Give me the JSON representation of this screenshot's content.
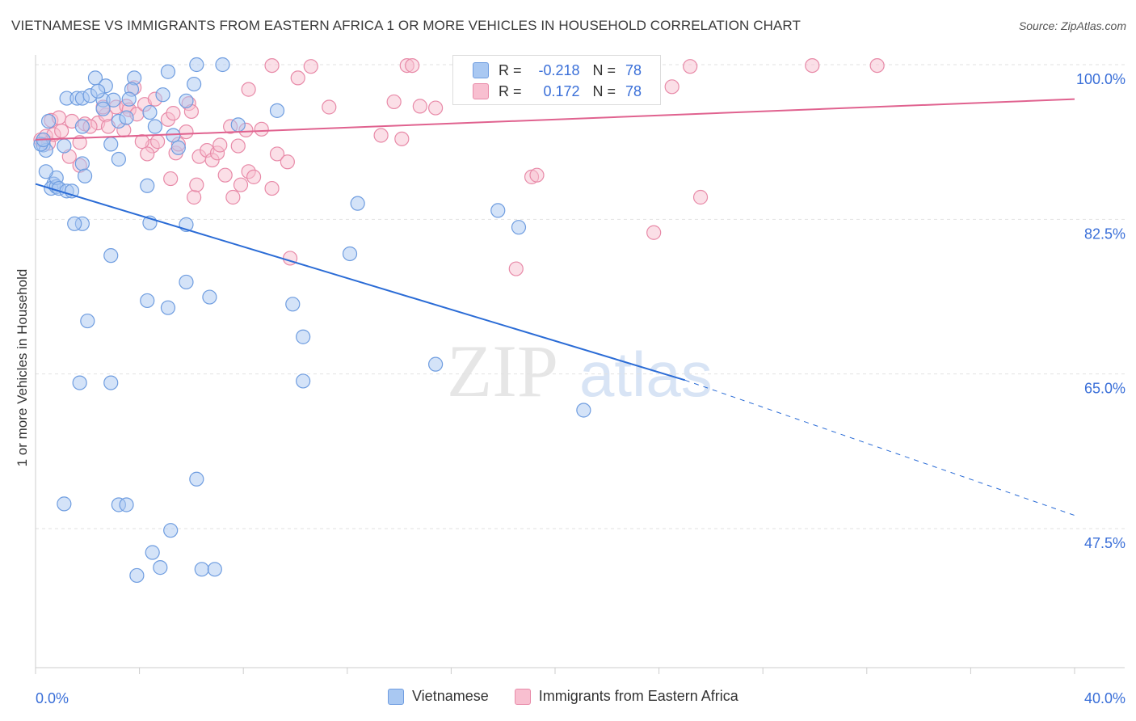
{
  "title": "VIETNAMESE VS IMMIGRANTS FROM EASTERN AFRICA 1 OR MORE VEHICLES IN HOUSEHOLD CORRELATION CHART",
  "source": "Source: ZipAtlas.com",
  "watermark": {
    "zip": "ZIP",
    "atlas": "atlas"
  },
  "legend": {
    "rows": [
      {
        "r_label": "R =",
        "r_value": "-0.218",
        "n_label": "N =",
        "n_value": "78",
        "color": "#a9c8f2",
        "border": "#6f9de0"
      },
      {
        "r_label": "R =",
        "r_value": "0.172",
        "n_label": "N =",
        "n_value": "78",
        "color": "#f8bfd0",
        "border": "#e88aa8"
      }
    ]
  },
  "chart_data": {
    "type": "scatter",
    "title": "VIETNAMESE VS IMMIGRANTS FROM EASTERN AFRICA 1 OR MORE VEHICLES IN HOUSEHOLD CORRELATION CHART",
    "xlabel": "",
    "ylabel": "1 or more Vehicles in Household",
    "xlim": [
      0,
      40
    ],
    "ylim": [
      30,
      102
    ],
    "x_tick_labels": [
      "0.0%",
      "40.0%"
    ],
    "y_ticks": [
      47.5,
      65.0,
      82.5,
      100.0
    ],
    "y_tick_labels": [
      "47.5%",
      "65.0%",
      "82.5%",
      "100.0%"
    ],
    "grid": "horizontal dashed",
    "legend_position": "top-center",
    "series": [
      {
        "name": "Vietnamese",
        "color": "#a9c8f2",
        "stroke": "#6f9de0",
        "trend": {
          "x1": 0,
          "y1": 86.5,
          "x2": 25,
          "y2": 64.3,
          "dashed_to_x": 40,
          "dashed_to_y": 49.0,
          "color": "#2b6cd6"
        },
        "points": [
          [
            0.3,
            90.9
          ],
          [
            0.4,
            90.3
          ],
          [
            0.2,
            91.0
          ],
          [
            0.3,
            91.5
          ],
          [
            0.5,
            93.6
          ],
          [
            0.7,
            86.5
          ],
          [
            0.6,
            86.0
          ],
          [
            0.8,
            86.2
          ],
          [
            0.8,
            87.2
          ],
          [
            0.9,
            86.0
          ],
          [
            1.2,
            85.7
          ],
          [
            1.4,
            85.7
          ],
          [
            1.1,
            90.8
          ],
          [
            1.2,
            96.2
          ],
          [
            1.6,
            96.2
          ],
          [
            1.8,
            96.2
          ],
          [
            2.1,
            96.5
          ],
          [
            2.3,
            98.5
          ],
          [
            2.6,
            96.0
          ],
          [
            2.7,
            97.6
          ],
          [
            2.4,
            97.0
          ],
          [
            3.0,
            96.0
          ],
          [
            3.2,
            93.6
          ],
          [
            3.8,
            98.5
          ],
          [
            3.5,
            94.0
          ],
          [
            3.7,
            97.2
          ],
          [
            4.4,
            94.6
          ],
          [
            4.9,
            96.6
          ],
          [
            5.1,
            99.2
          ],
          [
            5.5,
            90.6
          ],
          [
            5.8,
            95.9
          ],
          [
            6.1,
            97.8
          ],
          [
            6.2,
            100.0
          ],
          [
            7.2,
            100.0
          ],
          [
            7.8,
            93.2
          ],
          [
            9.3,
            94.8
          ],
          [
            1.8,
            88.8
          ],
          [
            2.9,
            91.0
          ],
          [
            3.2,
            89.3
          ],
          [
            1.8,
            82.0
          ],
          [
            1.5,
            82.0
          ],
          [
            4.3,
            86.3
          ],
          [
            4.4,
            82.1
          ],
          [
            5.8,
            81.9
          ],
          [
            5.3,
            92.0
          ],
          [
            4.6,
            93.0
          ],
          [
            2.9,
            78.4
          ],
          [
            5.8,
            75.4
          ],
          [
            4.3,
            73.3
          ],
          [
            5.1,
            72.5
          ],
          [
            6.7,
            73.7
          ],
          [
            9.9,
            72.9
          ],
          [
            10.3,
            69.2
          ],
          [
            10.3,
            64.2
          ],
          [
            12.4,
            84.3
          ],
          [
            12.1,
            78.6
          ],
          [
            15.4,
            66.1
          ],
          [
            17.8,
            83.5
          ],
          [
            18.6,
            81.6
          ],
          [
            2.0,
            71.0
          ],
          [
            1.7,
            64.0
          ],
          [
            2.9,
            64.0
          ],
          [
            21.1,
            60.9
          ],
          [
            6.2,
            53.1
          ],
          [
            1.1,
            50.3
          ],
          [
            3.2,
            50.2
          ],
          [
            3.5,
            50.2
          ],
          [
            5.2,
            47.3
          ],
          [
            4.5,
            44.8
          ],
          [
            4.8,
            43.1
          ],
          [
            3.9,
            42.2
          ],
          [
            6.4,
            42.9
          ],
          [
            6.9,
            42.9
          ],
          [
            1.8,
            93.0
          ],
          [
            2.6,
            95.0
          ],
          [
            3.6,
            96.1
          ],
          [
            0.4,
            87.9
          ],
          [
            1.9,
            87.4
          ]
        ]
      },
      {
        "name": "Immigrants from Eastern Africa",
        "color": "#f8bfd0",
        "stroke": "#e88aa8",
        "trend": {
          "x1": 0,
          "y1": 91.5,
          "x2": 40,
          "y2": 96.1,
          "color": "#e0628f"
        },
        "points": [
          [
            0.2,
            91.5
          ],
          [
            0.4,
            91.9
          ],
          [
            0.5,
            91.1
          ],
          [
            0.7,
            92.1
          ],
          [
            0.6,
            93.7
          ],
          [
            0.9,
            94.0
          ],
          [
            1.0,
            92.5
          ],
          [
            1.3,
            89.6
          ],
          [
            1.4,
            93.6
          ],
          [
            1.7,
            91.2
          ],
          [
            1.7,
            88.6
          ],
          [
            1.9,
            93.3
          ],
          [
            2.4,
            93.4
          ],
          [
            2.7,
            94.3
          ],
          [
            2.8,
            93.0
          ],
          [
            3.1,
            95.2
          ],
          [
            3.5,
            95.3
          ],
          [
            3.4,
            92.6
          ],
          [
            3.6,
            94.9
          ],
          [
            3.9,
            94.4
          ],
          [
            4.2,
            95.5
          ],
          [
            4.5,
            90.8
          ],
          [
            4.3,
            89.9
          ],
          [
            4.7,
            91.3
          ],
          [
            5.1,
            93.8
          ],
          [
            5.3,
            94.5
          ],
          [
            5.4,
            90.0
          ],
          [
            5.2,
            87.1
          ],
          [
            5.5,
            91.0
          ],
          [
            5.8,
            92.4
          ],
          [
            5.9,
            95.6
          ],
          [
            6.3,
            89.6
          ],
          [
            6.6,
            90.3
          ],
          [
            6.8,
            89.2
          ],
          [
            7.0,
            90.0
          ],
          [
            7.1,
            90.9
          ],
          [
            7.3,
            87.5
          ],
          [
            7.5,
            93.0
          ],
          [
            7.8,
            90.8
          ],
          [
            8.1,
            92.6
          ],
          [
            8.2,
            87.9
          ],
          [
            8.4,
            87.3
          ],
          [
            8.7,
            92.7
          ],
          [
            9.1,
            86.0
          ],
          [
            9.3,
            89.9
          ],
          [
            9.8,
            78.1
          ],
          [
            10.1,
            98.5
          ],
          [
            10.6,
            99.8
          ],
          [
            11.3,
            95.2
          ],
          [
            13.3,
            92.0
          ],
          [
            13.8,
            95.8
          ],
          [
            14.1,
            91.6
          ],
          [
            14.8,
            95.3
          ],
          [
            15.4,
            95.1
          ],
          [
            9.7,
            89.0
          ],
          [
            6.1,
            85.0
          ],
          [
            6.0,
            94.7
          ],
          [
            7.6,
            85.0
          ],
          [
            7.9,
            86.4
          ],
          [
            8.2,
            97.2
          ],
          [
            3.8,
            97.4
          ],
          [
            2.6,
            95.2
          ],
          [
            2.1,
            93.0
          ],
          [
            4.1,
            91.3
          ],
          [
            4.6,
            96.1
          ],
          [
            14.3,
            99.9
          ],
          [
            14.5,
            99.9
          ],
          [
            9.1,
            99.9
          ],
          [
            18.5,
            76.9
          ],
          [
            19.1,
            87.3
          ],
          [
            19.3,
            87.5
          ],
          [
            23.8,
            81.0
          ],
          [
            24.5,
            97.5
          ],
          [
            25.2,
            99.8
          ],
          [
            25.6,
            85.0
          ],
          [
            29.9,
            99.9
          ],
          [
            32.4,
            99.9
          ],
          [
            6.2,
            86.4
          ]
        ]
      }
    ]
  },
  "bottom_legend": [
    {
      "label": "Vietnamese",
      "color": "#a9c8f2",
      "border": "#6f9de0"
    },
    {
      "label": "Immigrants from Eastern Africa",
      "color": "#f8bfd0",
      "border": "#e88aa8"
    }
  ]
}
